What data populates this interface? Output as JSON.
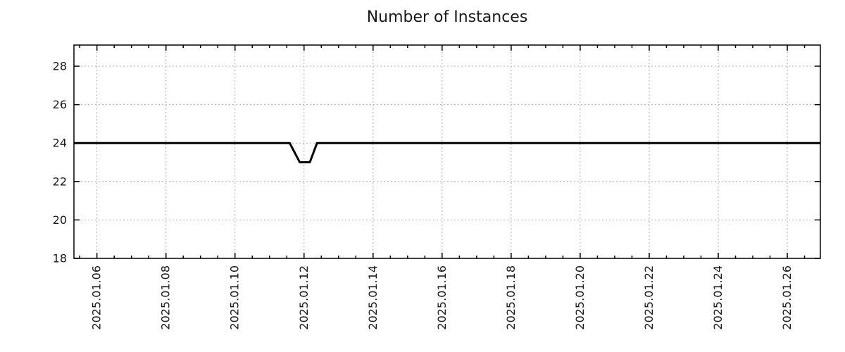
{
  "page": {
    "background": "#ffffff"
  },
  "chart_data": {
    "type": "line",
    "title": "Number of Instances",
    "xlabel": "",
    "ylabel": "",
    "grid": true,
    "legend": false,
    "colors": {
      "line": "#000000",
      "grid": "#b0b0b0",
      "axis": "#000000",
      "text": "#1a1a1a"
    },
    "x_axis": {
      "type": "time",
      "range": [
        "2025-01-05 08:00",
        "2025-01-26 23:00"
      ],
      "major_tick_labels": [
        "2025.01.06",
        "2025.01.08",
        "2025.01.10",
        "2025.01.12",
        "2025.01.14",
        "2025.01.16",
        "2025.01.18",
        "2025.01.20",
        "2025.01.22",
        "2025.01.24",
        "2025.01.26"
      ],
      "minor_tick_interval_days": 0.5
    },
    "y_axis": {
      "range": [
        18,
        29.1
      ],
      "major_ticks": [
        18,
        20,
        22,
        24,
        26,
        28
      ]
    },
    "series": [
      {
        "name": "instances",
        "color": "#000000",
        "line_width": 3,
        "points": [
          [
            "2025-01-05 08:00",
            24
          ],
          [
            "2025-01-11 14:00",
            24
          ],
          [
            "2025-01-11 21:00",
            23
          ],
          [
            "2025-01-12 04:00",
            23
          ],
          [
            "2025-01-12 09:00",
            24
          ],
          [
            "2025-01-26 23:00",
            24
          ]
        ]
      }
    ]
  }
}
